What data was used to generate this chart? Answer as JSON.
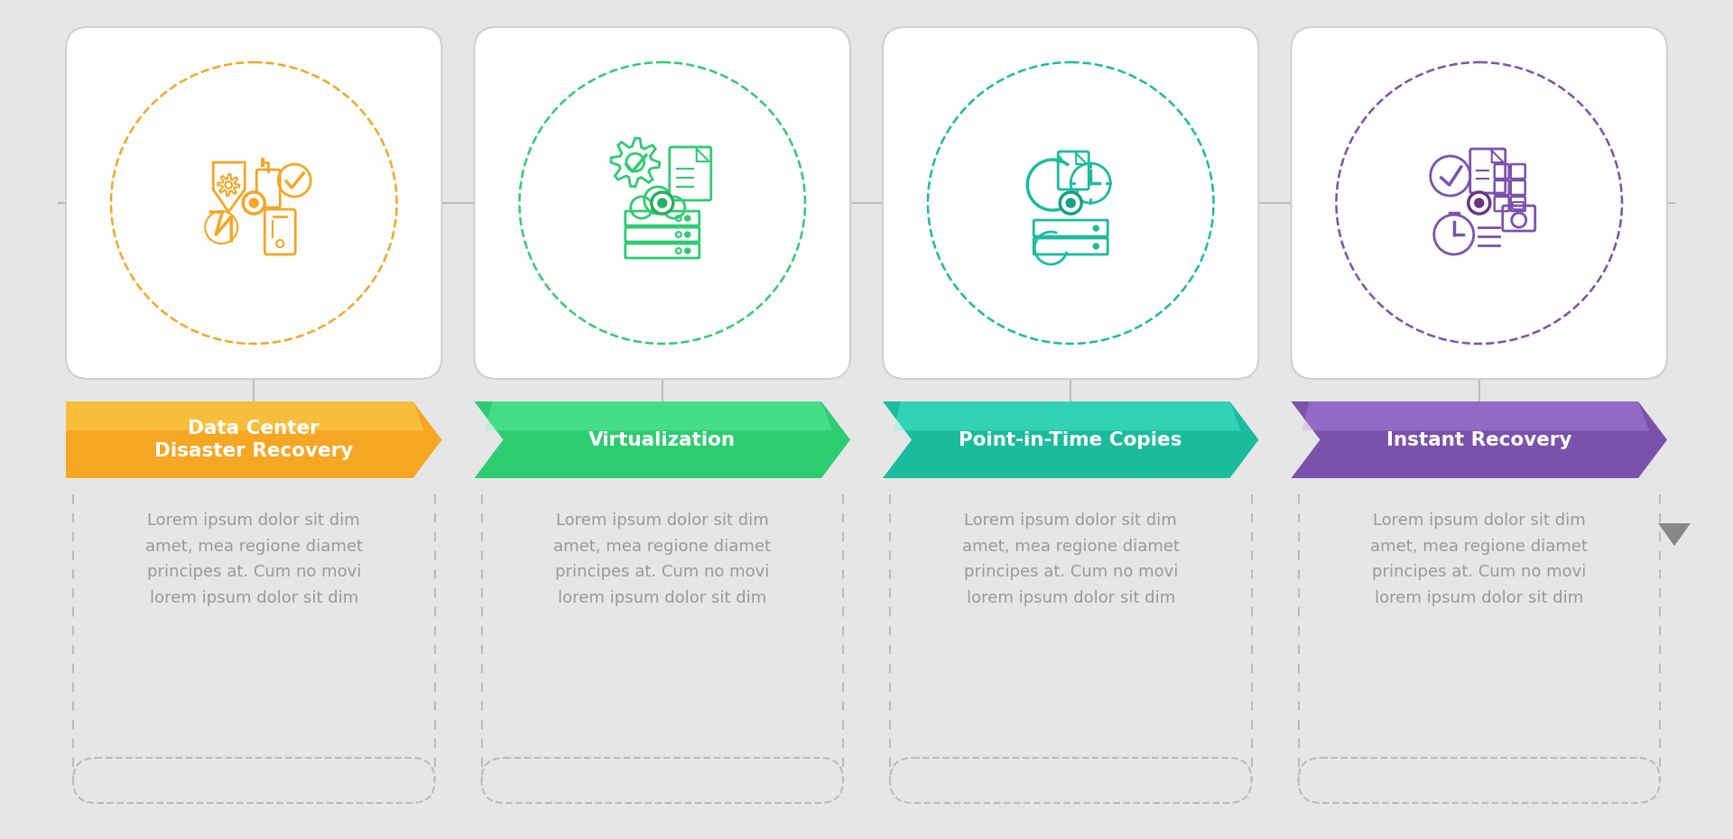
{
  "background_color": "#e6e6e6",
  "steps": [
    {
      "title": "Data Center\nDisaster Recovery",
      "color": "#F5A623",
      "dot_color": "#F5A623",
      "text_color": "#FFFFFF",
      "icon_color": "#F5A623"
    },
    {
      "title": "Virtualization",
      "color": "#2ECC71",
      "dot_color": "#27AE60",
      "text_color": "#FFFFFF",
      "icon_color": "#2ECC71"
    },
    {
      "title": "Point-in-Time Copies",
      "color": "#1ABC9C",
      "dot_color": "#16A085",
      "text_color": "#FFFFFF",
      "icon_color": "#1ABC9C"
    },
    {
      "title": "Instant Recovery",
      "color": "#7B52AB",
      "dot_color": "#6C3483",
      "text_color": "#FFFFFF",
      "icon_color": "#7B52AB"
    }
  ],
  "body_text": "Lorem ipsum dolor sit dim\namet, mea regione diamet\nprincipes at. Cum no movi\nlorem ipsum dolor sit dim",
  "body_text_color": "#999999",
  "connector_color": "#bbbbbb",
  "dashed_color": "#bbbbbb"
}
